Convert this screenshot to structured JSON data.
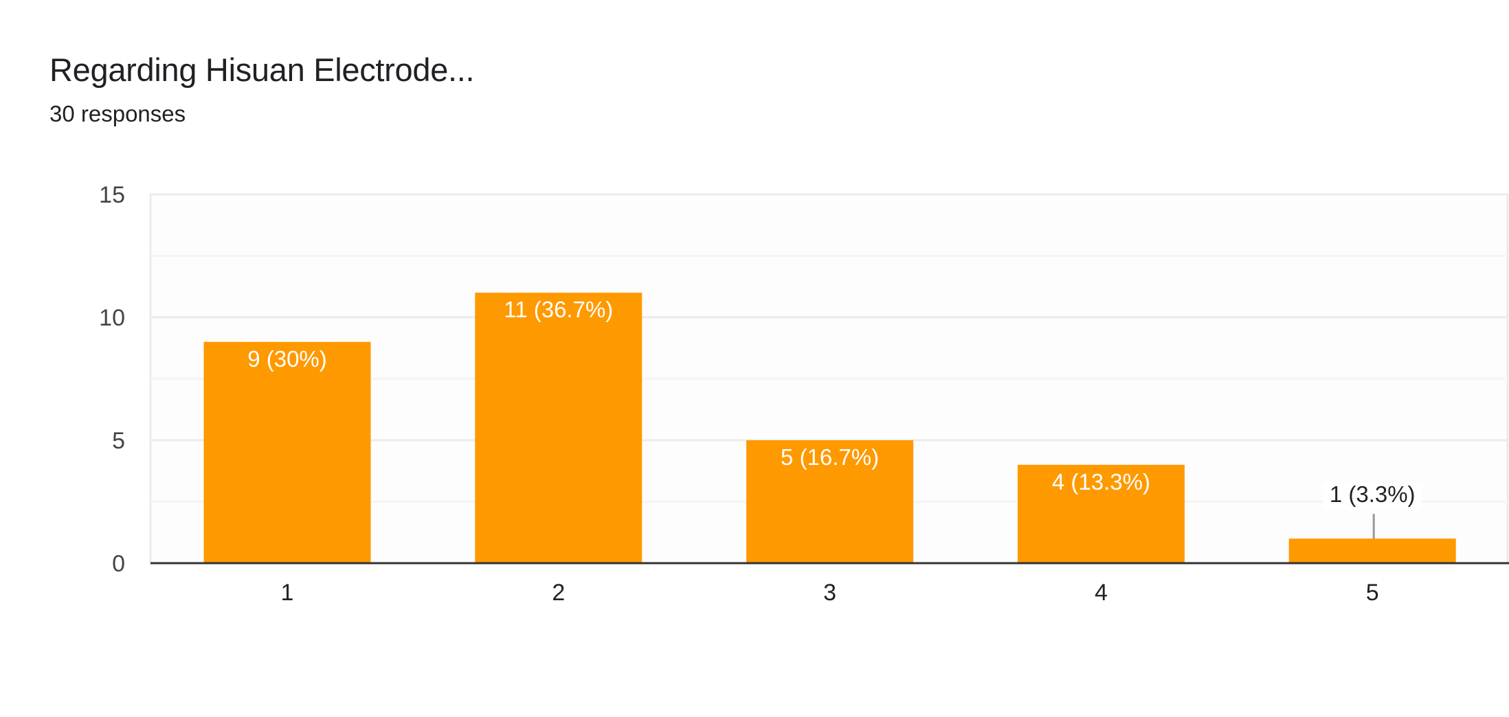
{
  "header": {
    "title": "Regarding Hisuan Electrode...",
    "responses": "30 responses"
  },
  "colors": {
    "bar": "#ff9900",
    "axis": "#333333",
    "gridline_major": "#ebebeb",
    "gridline_minor": "#f5f5f5",
    "plot_border": "#ebebeb",
    "text_dark": "#202124",
    "tick_label": "#444444",
    "leader_line": "#999999"
  },
  "chart_data": {
    "type": "bar",
    "title": "Regarding Hisuan Electrode...",
    "subtitle": "30 responses",
    "categories": [
      "1",
      "2",
      "3",
      "4",
      "5"
    ],
    "values": [
      9,
      11,
      5,
      4,
      1
    ],
    "data_labels": [
      "9 (30%)",
      "11 (36.7%)",
      "5 (16.7%)",
      "4 (13.3%)",
      "1 (3.3%)"
    ],
    "percentages": [
      30,
      36.7,
      16.7,
      13.3,
      3.3
    ],
    "xlabel": "",
    "ylabel": "",
    "ylim": [
      0,
      15
    ],
    "yticks": [
      0,
      5,
      10,
      15
    ],
    "minor_gridlines": [
      2.5,
      7.5,
      12.5
    ],
    "grid": true,
    "legend": "none"
  }
}
